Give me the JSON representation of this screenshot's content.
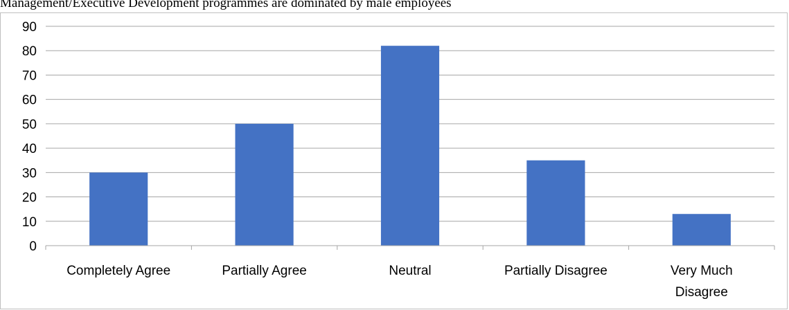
{
  "page": {
    "title": "Management/Executive Development programmes are dominated by male employees"
  },
  "chart_data": {
    "type": "bar",
    "title": "",
    "xlabel": "",
    "ylabel": "",
    "categories": [
      "Completely Agree",
      "Partially Agree",
      "Neutral",
      "Partially Disagree",
      "Very Much Disagree"
    ],
    "category_label_lines": [
      [
        "Completely Agree"
      ],
      [
        "Partially Agree"
      ],
      [
        "Neutral"
      ],
      [
        "Partially Disagree"
      ],
      [
        "Very Much",
        "Disagree"
      ]
    ],
    "values": [
      30,
      50,
      82,
      35,
      13
    ],
    "ylim": [
      0,
      90
    ],
    "yticks": [
      "0",
      "10",
      "20",
      "30",
      "40",
      "50",
      "60",
      "70",
      "80",
      "90"
    ],
    "grid": true,
    "legend": "none",
    "colors": {
      "bar": "#4472c4",
      "grid": "#a6a6a6",
      "axis": "#a6a6a6"
    }
  }
}
